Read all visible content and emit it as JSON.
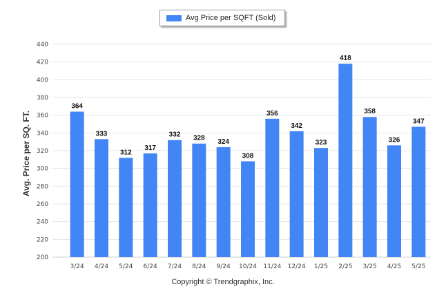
{
  "chart_data": {
    "type": "bar",
    "legend": {
      "label": "Avg Price per SQFT (Sold)",
      "position": "top-center"
    },
    "ylabel": "Avg. Price per SQ. FT.",
    "xlabel": "",
    "ylim": [
      200,
      440
    ],
    "yticks": [
      200,
      220,
      240,
      260,
      280,
      300,
      320,
      340,
      360,
      380,
      400,
      420,
      440
    ],
    "grid": true,
    "categories": [
      "3/24",
      "4/24",
      "5/24",
      "6/24",
      "7/24",
      "8/24",
      "9/24",
      "10/24",
      "11/24",
      "12/24",
      "1/25",
      "2/25",
      "3/25",
      "4/25",
      "5/25"
    ],
    "series": [
      {
        "name": "Avg Price per SQFT (Sold)",
        "values": [
          364,
          333,
          312,
          317,
          332,
          328,
          324,
          308,
          356,
          342,
          323,
          418,
          358,
          326,
          347
        ]
      }
    ],
    "colors": {
      "bar": "#4285f4",
      "grid": "#e6e6e6"
    }
  },
  "footer": {
    "copyright": "Copyright © Trendgraphix, Inc."
  }
}
